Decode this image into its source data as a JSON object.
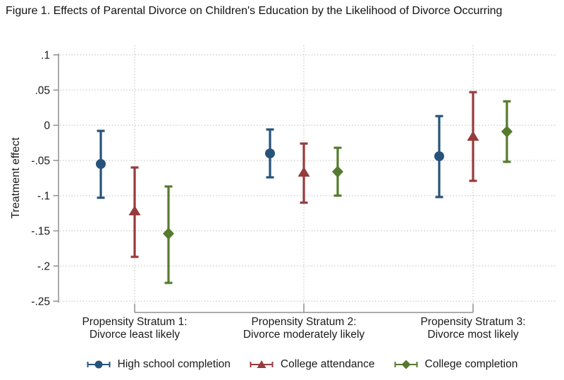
{
  "figure": {
    "title": "Figure 1. Effects of Parental Divorce on Children's Education by the Likelihood of Divorce Occurring"
  },
  "chart_data": {
    "type": "scatter",
    "subtype": "coefficient-plot-with-95ci-error-bars",
    "title": "Figure 1. Effects of Parental Divorce on Children's Education by the Likelihood of Divorce Occurring",
    "xlabel": "",
    "ylabel": "Treatment effect",
    "ylim": [
      -0.25,
      0.1
    ],
    "yticks": [
      0.1,
      0.05,
      0,
      -0.05,
      -0.1,
      -0.15,
      -0.2,
      -0.25
    ],
    "ytick_labels": [
      ".1",
      ".05",
      "0",
      "-.05",
      "-.1",
      "-.15",
      "-.2",
      "-.25"
    ],
    "grid": "dotted horizontal and vertical gridlines",
    "legend_position": "bottom",
    "categories": [
      [
        "Propensity Stratum 1:",
        "Divorce least likely"
      ],
      [
        "Propensity Stratum 2:",
        "Divorce moderately likely"
      ],
      [
        "Propensity Stratum 3:",
        "Divorce most likely"
      ]
    ],
    "series": [
      {
        "name": "High school completion",
        "marker": "circle",
        "color": "#27537a",
        "points": [
          {
            "est": -0.055,
            "lo": -0.103,
            "hi": -0.008
          },
          {
            "est": -0.04,
            "lo": -0.074,
            "hi": -0.006
          },
          {
            "est": -0.044,
            "lo": -0.102,
            "hi": 0.013
          }
        ]
      },
      {
        "name": "College attendance",
        "marker": "triangle",
        "color": "#963b3c",
        "points": [
          {
            "est": -0.122,
            "lo": -0.187,
            "hi": -0.06
          },
          {
            "est": -0.067,
            "lo": -0.11,
            "hi": -0.026
          },
          {
            "est": -0.016,
            "lo": -0.079,
            "hi": 0.047
          }
        ]
      },
      {
        "name": "College completion",
        "marker": "diamond",
        "color": "#567a2e",
        "points": [
          {
            "est": -0.154,
            "lo": -0.224,
            "hi": -0.087
          },
          {
            "est": -0.066,
            "lo": -0.1,
            "hi": -0.032
          },
          {
            "est": -0.009,
            "lo": -0.052,
            "hi": 0.034
          }
        ]
      }
    ],
    "style": {
      "grid_color": "#bdbdbd",
      "axis_color": "#8f8f8f",
      "text_color": "#1a1a1a",
      "background": "#ffffff"
    }
  }
}
